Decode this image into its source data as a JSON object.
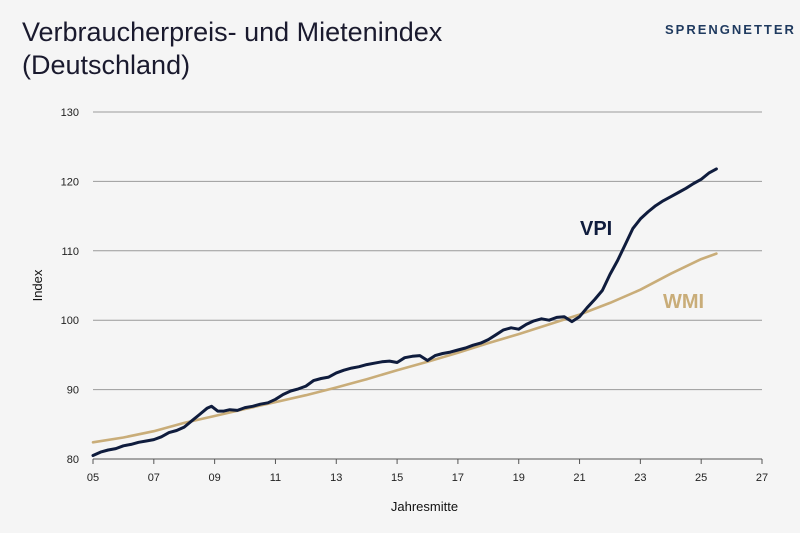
{
  "header": {
    "title_line1": "Verbraucherpreis- und Mietenindex",
    "title_line2": "(Deutschland)",
    "logo_text": "SPRENGNETTER"
  },
  "colors": {
    "vpi": "#0f1c3d",
    "wmi": "#c9ad79",
    "grid": "#9a9a9a",
    "background": "#f5f5f5"
  },
  "chart_data": {
    "type": "line",
    "xlabel": "Jahresmitte",
    "ylabel": "Index",
    "xlim": [
      2005,
      2027
    ],
    "ylim": [
      80,
      130
    ],
    "x_ticks": [
      2005,
      2007,
      2009,
      2011,
      2013,
      2015,
      2017,
      2019,
      2021,
      2023,
      2025,
      2027
    ],
    "x_tick_labels": [
      "05",
      "07",
      "09",
      "11",
      "13",
      "15",
      "17",
      "19",
      "21",
      "23",
      "25",
      "27"
    ],
    "y_ticks": [
      80,
      90,
      100,
      110,
      120,
      130
    ],
    "y_tick_labels": [
      "80",
      "90",
      "100",
      "110",
      "120",
      "130"
    ],
    "grid": "horizontal",
    "series": [
      {
        "name": "VPI",
        "color": "#0f1c3d",
        "points": [
          [
            2005.0,
            80.5
          ],
          [
            2005.25,
            81.0
          ],
          [
            2005.5,
            81.3
          ],
          [
            2005.75,
            81.5
          ],
          [
            2006.0,
            81.9
          ],
          [
            2006.25,
            82.1
          ],
          [
            2006.5,
            82.4
          ],
          [
            2006.75,
            82.6
          ],
          [
            2007.0,
            82.8
          ],
          [
            2007.25,
            83.2
          ],
          [
            2007.5,
            83.8
          ],
          [
            2007.75,
            84.1
          ],
          [
            2008.0,
            84.6
          ],
          [
            2008.25,
            85.5
          ],
          [
            2008.5,
            86.4
          ],
          [
            2008.75,
            87.3
          ],
          [
            2008.9,
            87.6
          ],
          [
            2009.1,
            86.9
          ],
          [
            2009.3,
            86.9
          ],
          [
            2009.5,
            87.1
          ],
          [
            2009.75,
            87.0
          ],
          [
            2010.0,
            87.4
          ],
          [
            2010.25,
            87.6
          ],
          [
            2010.5,
            87.9
          ],
          [
            2010.75,
            88.1
          ],
          [
            2011.0,
            88.6
          ],
          [
            2011.25,
            89.3
          ],
          [
            2011.5,
            89.8
          ],
          [
            2011.75,
            90.1
          ],
          [
            2012.0,
            90.5
          ],
          [
            2012.25,
            91.3
          ],
          [
            2012.5,
            91.6
          ],
          [
            2012.75,
            91.8
          ],
          [
            2013.0,
            92.4
          ],
          [
            2013.25,
            92.8
          ],
          [
            2013.5,
            93.1
          ],
          [
            2013.75,
            93.3
          ],
          [
            2014.0,
            93.6
          ],
          [
            2014.25,
            93.8
          ],
          [
            2014.5,
            94.0
          ],
          [
            2014.75,
            94.1
          ],
          [
            2015.0,
            93.9
          ],
          [
            2015.25,
            94.6
          ],
          [
            2015.5,
            94.8
          ],
          [
            2015.75,
            94.9
          ],
          [
            2016.0,
            94.2
          ],
          [
            2016.25,
            94.9
          ],
          [
            2016.5,
            95.2
          ],
          [
            2016.75,
            95.4
          ],
          [
            2017.0,
            95.7
          ],
          [
            2017.25,
            96.0
          ],
          [
            2017.5,
            96.4
          ],
          [
            2017.75,
            96.7
          ],
          [
            2018.0,
            97.2
          ],
          [
            2018.25,
            97.9
          ],
          [
            2018.5,
            98.6
          ],
          [
            2018.75,
            98.9
          ],
          [
            2019.0,
            98.7
          ],
          [
            2019.25,
            99.4
          ],
          [
            2019.5,
            99.9
          ],
          [
            2019.75,
            100.2
          ],
          [
            2020.0,
            100.0
          ],
          [
            2020.25,
            100.4
          ],
          [
            2020.5,
            100.5
          ],
          [
            2020.75,
            99.8
          ],
          [
            2021.0,
            100.5
          ],
          [
            2021.25,
            101.8
          ],
          [
            2021.5,
            103.0
          ],
          [
            2021.75,
            104.3
          ],
          [
            2022.0,
            106.6
          ],
          [
            2022.25,
            108.6
          ],
          [
            2022.5,
            110.9
          ],
          [
            2022.75,
            113.2
          ],
          [
            2023.0,
            114.6
          ],
          [
            2023.25,
            115.6
          ],
          [
            2023.5,
            116.5
          ],
          [
            2023.75,
            117.2
          ],
          [
            2024.0,
            117.8
          ],
          [
            2024.25,
            118.4
          ],
          [
            2024.5,
            119.0
          ],
          [
            2024.75,
            119.7
          ],
          [
            2025.0,
            120.3
          ],
          [
            2025.25,
            121.2
          ],
          [
            2025.5,
            121.8
          ]
        ]
      },
      {
        "name": "WMI",
        "color": "#c9ad79",
        "points": [
          [
            2005.0,
            82.4
          ],
          [
            2006.0,
            83.1
          ],
          [
            2007.0,
            84.0
          ],
          [
            2008.0,
            85.2
          ],
          [
            2009.0,
            86.2
          ],
          [
            2010.0,
            87.2
          ],
          [
            2011.0,
            88.2
          ],
          [
            2012.0,
            89.2
          ],
          [
            2013.0,
            90.3
          ],
          [
            2014.0,
            91.5
          ],
          [
            2015.0,
            92.8
          ],
          [
            2016.0,
            94.0
          ],
          [
            2017.0,
            95.3
          ],
          [
            2018.0,
            96.7
          ],
          [
            2019.0,
            98.0
          ],
          [
            2020.0,
            99.4
          ],
          [
            2021.0,
            100.8
          ],
          [
            2022.0,
            102.5
          ],
          [
            2023.0,
            104.4
          ],
          [
            2024.0,
            106.7
          ],
          [
            2025.0,
            108.8
          ],
          [
            2025.5,
            109.6
          ]
        ]
      }
    ]
  }
}
